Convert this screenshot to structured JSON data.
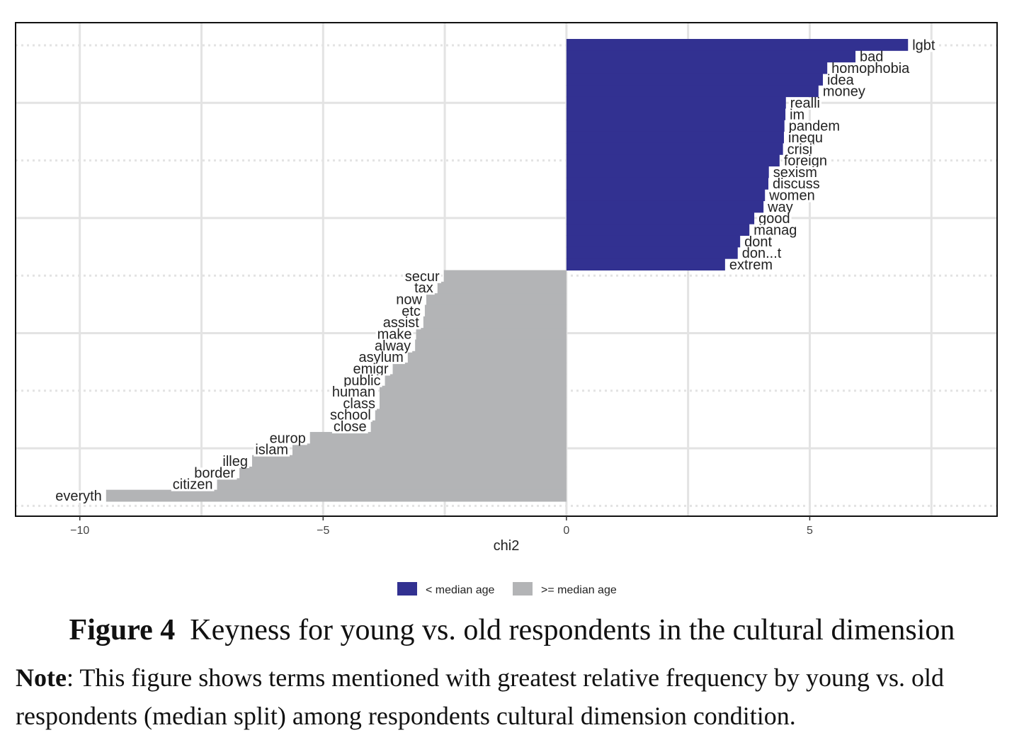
{
  "chart_data": {
    "type": "bar",
    "orientation": "horizontal",
    "xlabel": "chi2",
    "xlim": [
      -11.32,
      8.85
    ],
    "xticks": [
      -10,
      -5,
      0,
      5
    ],
    "xtick_labels": [
      "−10",
      "−5",
      "0",
      "5"
    ],
    "grid": true,
    "legend_position": "bottom",
    "colors": {
      "young": "#323191",
      "old": "#b3b4b6"
    },
    "series": [
      {
        "name": "< median age",
        "key": "young",
        "categories": [
          "lgbt",
          "bad",
          "homophobia",
          "idea",
          "money",
          "realli",
          "im",
          "pandem",
          "inequ",
          "crisi",
          "foreign",
          "sexism",
          "discuss",
          "women",
          "way",
          "good",
          "manag",
          "dont",
          "don...t",
          "extrem"
        ],
        "values": [
          7.02,
          5.94,
          5.36,
          5.27,
          5.18,
          4.51,
          4.5,
          4.48,
          4.47,
          4.45,
          4.38,
          4.16,
          4.15,
          4.08,
          4.05,
          3.86,
          3.76,
          3.57,
          3.52,
          3.26
        ]
      },
      {
        "name": ">= median age",
        "key": "old",
        "categories": [
          "secur",
          "tax",
          "now",
          "etc",
          "assist",
          "make",
          "alway",
          "asylum",
          "emigr",
          "public",
          "human",
          "class",
          "school",
          "close",
          "europ",
          "islam",
          "illeg",
          "border",
          "citizen",
          "everyth"
        ],
        "values": [
          -2.52,
          -2.65,
          -2.88,
          -2.91,
          -2.94,
          -3.09,
          -3.11,
          -3.26,
          -3.57,
          -3.73,
          -3.84,
          -3.84,
          -3.93,
          -4.02,
          -5.27,
          -5.63,
          -6.46,
          -6.72,
          -7.18,
          -9.46
        ]
      }
    ]
  },
  "caption": {
    "title_bold": "Figure 4",
    "title_text": "  Keyness for young vs. old respondents in the cultural dimension",
    "note_bold": "Note",
    "note_text": ": This figure shows terms mentioned with greatest relative frequency by young vs. old respondents (median split) among respondents cultural dimension condition."
  }
}
